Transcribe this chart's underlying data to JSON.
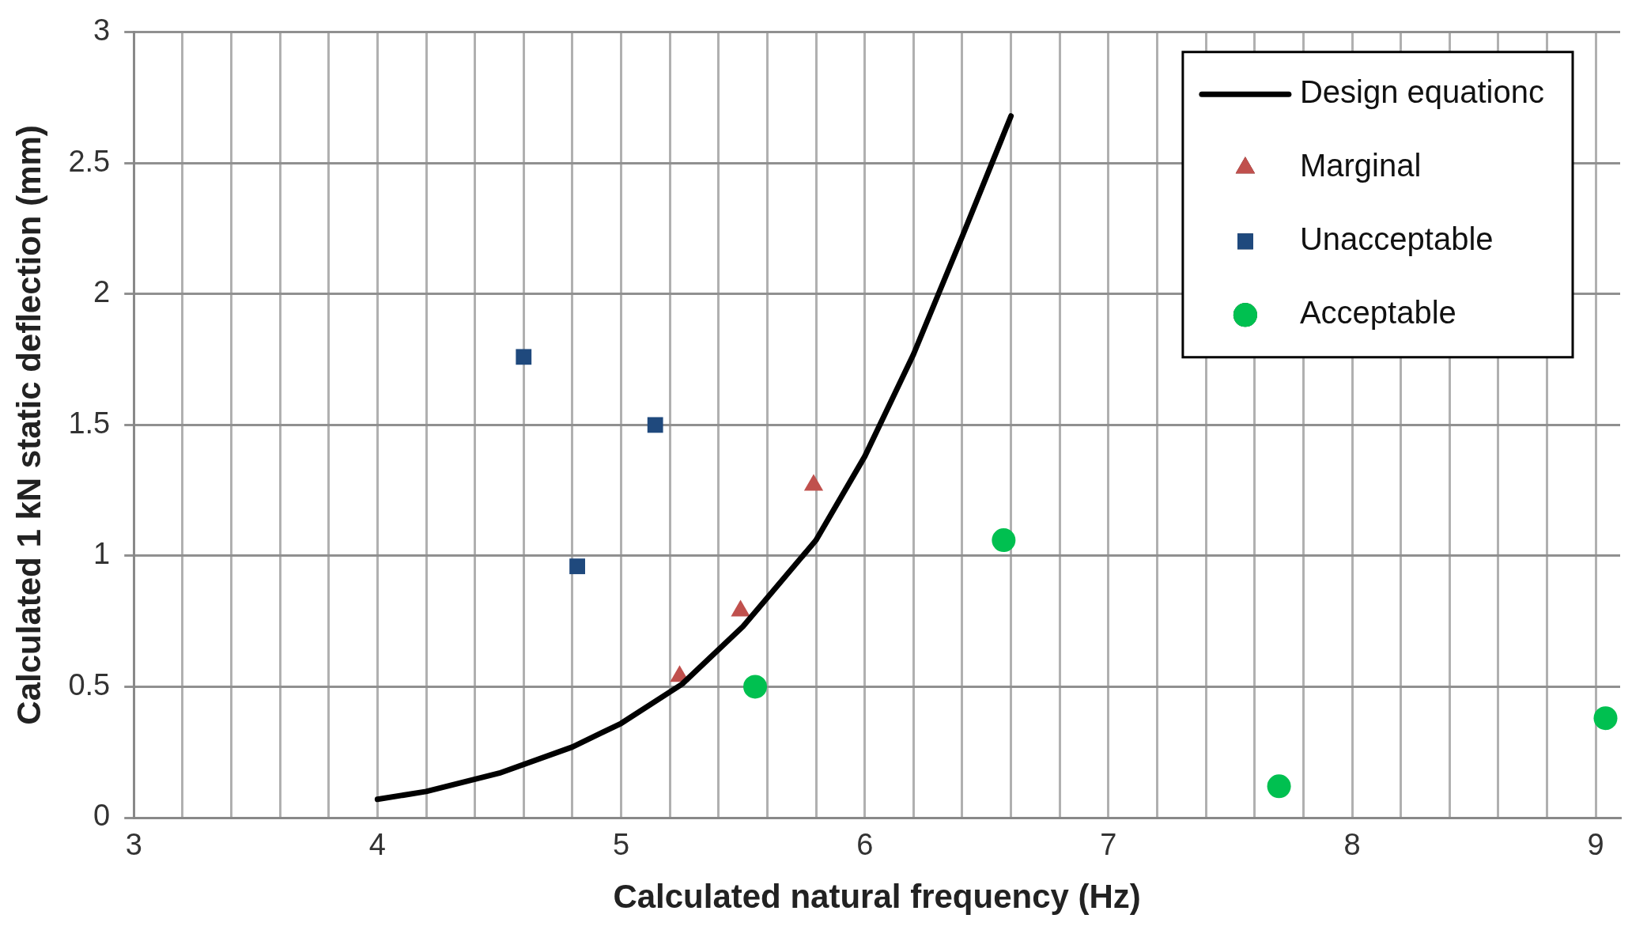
{
  "chart_data": {
    "type": "scatter",
    "xlabel": "Calculated natural frequency (Hz)",
    "ylabel": "Calculated 1 kN static deflection (mm)",
    "xlim": [
      3,
      9.1
    ],
    "xticks": [
      3,
      {
        "value": 3.2,
        "label": null
      },
      {
        "value": 3.4,
        "label": null
      },
      {
        "value": 3.6,
        "label": null
      },
      {
        "value": 3.8,
        "label": null
      },
      4,
      {
        "value": 4.2,
        "label": null
      },
      {
        "value": 4.4,
        "label": null
      },
      {
        "value": 4.6,
        "label": null
      },
      {
        "value": 4.8,
        "label": null
      },
      5,
      {
        "value": 5.2,
        "label": null
      },
      {
        "value": 5.4,
        "label": null
      },
      {
        "value": 5.6,
        "label": null
      },
      {
        "value": 5.8,
        "label": null
      },
      6,
      {
        "value": 6.2,
        "label": null
      },
      {
        "value": 6.4,
        "label": null
      },
      {
        "value": 6.6,
        "label": null
      },
      {
        "value": 6.8,
        "label": null
      },
      7,
      {
        "value": 7.2,
        "label": null
      },
      {
        "value": 7.4,
        "label": null
      },
      {
        "value": 7.6,
        "label": null
      },
      {
        "value": 7.8,
        "label": null
      },
      8,
      {
        "value": 8.2,
        "label": null
      },
      {
        "value": 8.4,
        "label": null
      },
      {
        "value": 8.6,
        "label": null
      },
      {
        "value": 8.8,
        "label": null
      },
      9
    ],
    "ylim": [
      0,
      3
    ],
    "yticks": [
      0,
      0.5,
      1,
      1.5,
      2,
      2.5,
      3
    ],
    "grid": true,
    "legend": "top right",
    "series": [
      {
        "name": "Design equationc",
        "type": "line",
        "color": "#000000",
        "marker": "none",
        "line_style": "solid",
        "x": [
          4,
          4.2,
          4.5,
          4.8,
          5,
          5.25,
          5.5,
          5.8,
          6,
          6.2,
          6.4,
          6.5,
          6.6
        ],
        "values": [
          0.07,
          0.1,
          0.17,
          0.27,
          0.36,
          0.51,
          0.73,
          1.06,
          1.38,
          1.77,
          2.22,
          2.45,
          2.68
        ]
      },
      {
        "name": "Marginal",
        "color": "#c0504d",
        "marker": "triangle",
        "x": [
          5.24,
          5.49,
          5.79
        ],
        "values": [
          0.54,
          0.79,
          1.27
        ]
      },
      {
        "name": "Unacceptable",
        "color": "#1f497d",
        "marker": "square",
        "x": [
          4.6,
          5.14,
          4.82
        ],
        "values": [
          1.76,
          1.5,
          0.96
        ]
      },
      {
        "name": "Acceptable",
        "color": "#00c050",
        "marker": "circle",
        "x": [
          5.55,
          6.57,
          7.7,
          9.04
        ],
        "values": [
          0.5,
          1.06,
          0.12,
          0.38
        ]
      }
    ]
  }
}
